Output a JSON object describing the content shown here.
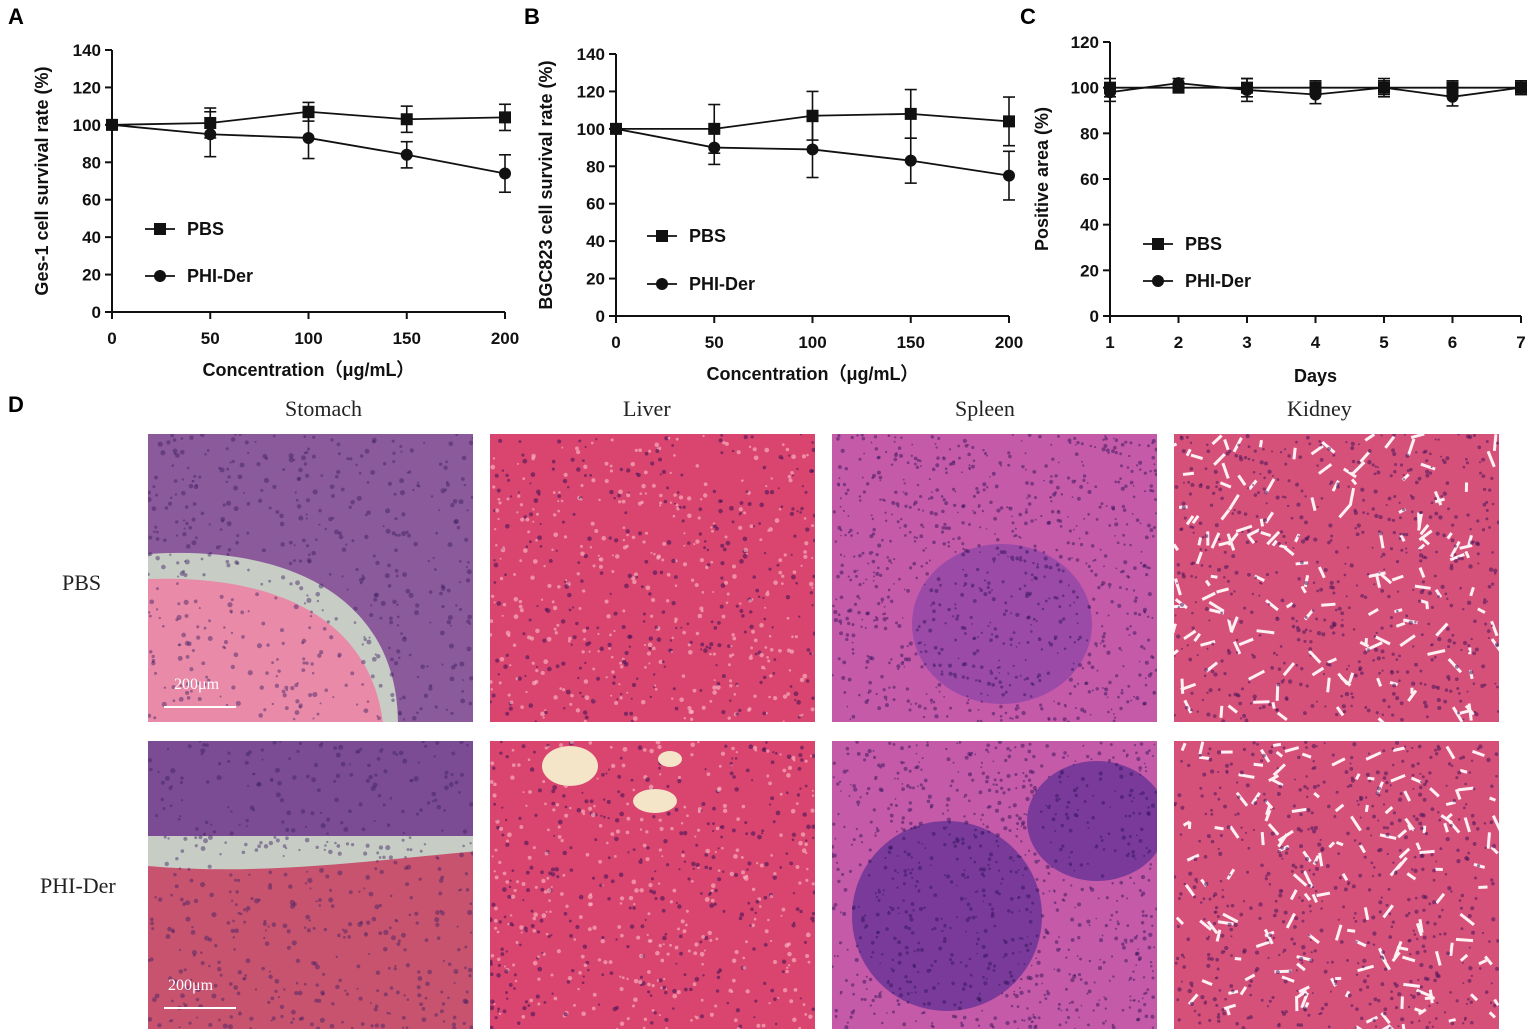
{
  "chart_data": [
    {
      "panel": "A",
      "type": "line",
      "x": [
        0,
        50,
        100,
        150,
        200
      ],
      "xlabel": "Concentration（μg/mL）",
      "ylabel": "Ges-1 cell survival rate (%)",
      "xlim": [
        0,
        200
      ],
      "ylim": [
        0,
        140
      ],
      "xticks": [
        0,
        50,
        100,
        150,
        200
      ],
      "yticks": [
        0,
        20,
        40,
        60,
        80,
        100,
        120,
        140
      ],
      "legend_position": "lower-left",
      "series": [
        {
          "name": "PBS",
          "marker": "square",
          "values": [
            100,
            101,
            107,
            103,
            104
          ],
          "errors": [
            0,
            8,
            5,
            7,
            7
          ]
        },
        {
          "name": "PHI-Der",
          "marker": "circle",
          "values": [
            100,
            95,
            93,
            84,
            74
          ],
          "errors": [
            0,
            12,
            11,
            7,
            10
          ]
        }
      ]
    },
    {
      "panel": "B",
      "type": "line",
      "x": [
        0,
        50,
        100,
        150,
        200
      ],
      "xlabel": "Concentration（μg/mL）",
      "ylabel": "BGC823 cell survival rate (%)",
      "xlim": [
        0,
        200
      ],
      "ylim": [
        0,
        140
      ],
      "xticks": [
        0,
        50,
        100,
        150,
        200
      ],
      "yticks": [
        0,
        20,
        40,
        60,
        80,
        100,
        120,
        140
      ],
      "legend_position": "lower-left",
      "series": [
        {
          "name": "PBS",
          "marker": "square",
          "values": [
            100,
            100,
            107,
            108,
            104
          ],
          "errors": [
            0,
            13,
            13,
            13,
            13
          ]
        },
        {
          "name": "PHI-Der",
          "marker": "circle",
          "values": [
            100,
            90,
            89,
            83,
            75
          ],
          "errors": [
            0,
            9,
            15,
            12,
            13
          ]
        }
      ]
    },
    {
      "panel": "C",
      "type": "line",
      "x": [
        1,
        2,
        3,
        4,
        5,
        6,
        7
      ],
      "xlabel": "Days",
      "ylabel": "Positive area (%)",
      "xlim": [
        1,
        7
      ],
      "ylim": [
        0,
        120
      ],
      "xticks": [
        1,
        2,
        3,
        4,
        5,
        6,
        7
      ],
      "yticks": [
        0,
        20,
        40,
        60,
        80,
        100,
        120
      ],
      "legend_position": "lower-left",
      "series": [
        {
          "name": "PBS",
          "marker": "square",
          "values": [
            100,
            100,
            100,
            100,
            100,
            100,
            100
          ],
          "errors": [
            4,
            2,
            4,
            3,
            4,
            3,
            3
          ]
        },
        {
          "name": "PHI-Der",
          "marker": "circle",
          "values": [
            98,
            102,
            99,
            97,
            100,
            96,
            100
          ],
          "errors": [
            4,
            2,
            5,
            4,
            3,
            4,
            3
          ]
        }
      ]
    }
  ],
  "panel_letters": {
    "a": "A",
    "b": "B",
    "c": "C",
    "d": "D"
  },
  "histology": {
    "columns": [
      "Stomach",
      "Liver",
      "Spleen",
      "Kidney"
    ],
    "rows": [
      "PBS",
      "PHI-Der"
    ],
    "scale_bar": "200μm",
    "colors": {
      "stroma_pink": "#e88aa8",
      "nuclei_purple": "#6a3a9a",
      "liver_pink": "#d9456e",
      "spleen_purple": "#9b4aa8",
      "kidney_pink": "#d6517a",
      "background_gray": "#c7ccc4"
    }
  }
}
